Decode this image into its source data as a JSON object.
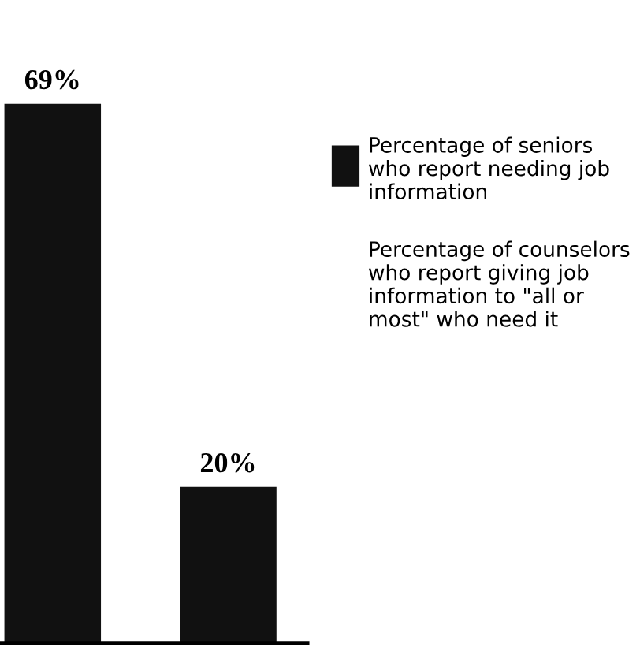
{
  "chart_data": {
    "type": "bar",
    "categories": [
      null,
      null
    ],
    "values": [
      69,
      20
    ],
    "colors": [
      "#111111",
      "#111111"
    ],
    "value_labels": [
      "69%",
      "20%"
    ],
    "annotations": [
      "Percentage of seniors who report needing job information",
      "Percentage of counselors who report giving job information to \"all or most\" who need it"
    ]
  }
}
